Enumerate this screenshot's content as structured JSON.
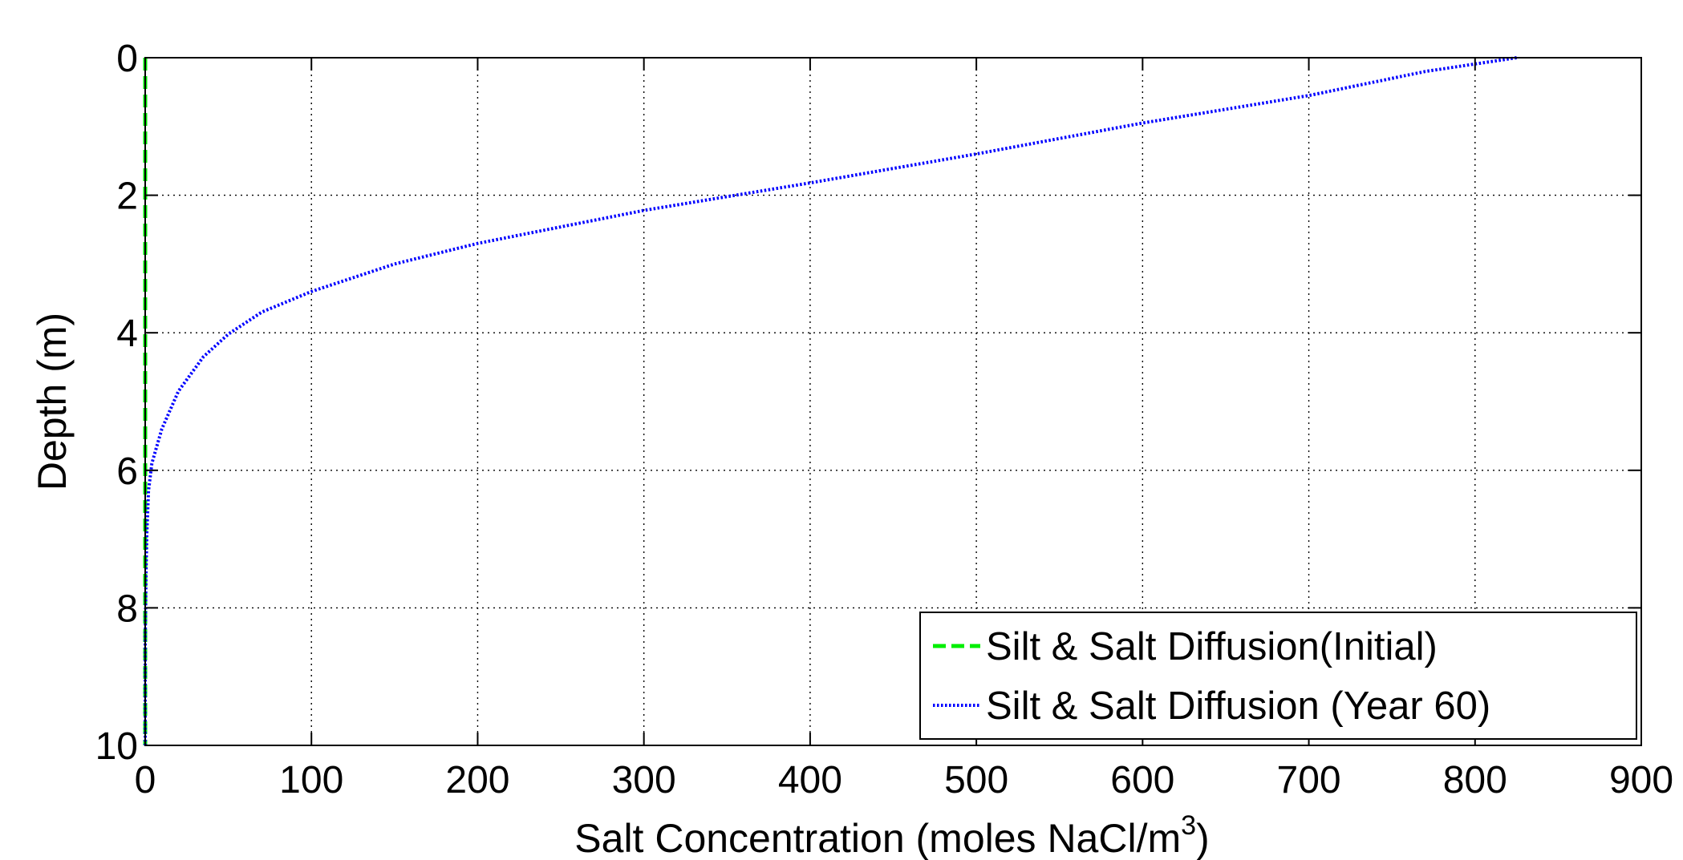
{
  "chart_data": {
    "type": "line",
    "xlabel": "Salt Concentration (moles NaCl/m",
    "xlabel_superscript": "3",
    "xlabel_suffix": ")",
    "ylabel": "Depth (m)",
    "xlim": [
      0,
      900
    ],
    "ylim": [
      0,
      10
    ],
    "y_reversed": true,
    "xticks": [
      0,
      100,
      200,
      300,
      400,
      500,
      600,
      700,
      800,
      900
    ],
    "yticks": [
      0,
      2,
      4,
      6,
      8,
      10
    ],
    "xtick_labels": [
      "0",
      "100",
      "200",
      "300",
      "400",
      "500",
      "600",
      "700",
      "800",
      "900"
    ],
    "ytick_labels": [
      "0",
      "2",
      "4",
      "6",
      "8",
      "10"
    ],
    "grid": true,
    "legend_position": "bottom-right",
    "series": [
      {
        "name": "Silt & Salt Diffusion(Initial)",
        "color": "#00ee00",
        "line_style": "dashed",
        "x": [
          0,
          0,
          0,
          0,
          0,
          0,
          0,
          0,
          0,
          0,
          0
        ],
        "y": [
          0,
          1,
          2,
          3,
          4,
          5,
          6,
          7,
          8,
          9,
          10
        ]
      },
      {
        "name": "Silt & Salt Diffusion (Year 60)",
        "color": "#0000ff",
        "line_style": "dotted",
        "x": [
          825,
          770,
          700,
          600,
          500,
          400,
          300,
          200,
          150,
          100,
          70,
          50,
          35,
          20,
          10,
          4,
          2,
          1,
          0.5,
          0,
          0
        ],
        "y": [
          0,
          0.2,
          0.55,
          0.95,
          1.4,
          1.82,
          2.22,
          2.7,
          3.0,
          3.4,
          3.7,
          4.02,
          4.35,
          4.85,
          5.4,
          5.9,
          6.3,
          6.9,
          7.5,
          8.5,
          10
        ]
      }
    ]
  }
}
